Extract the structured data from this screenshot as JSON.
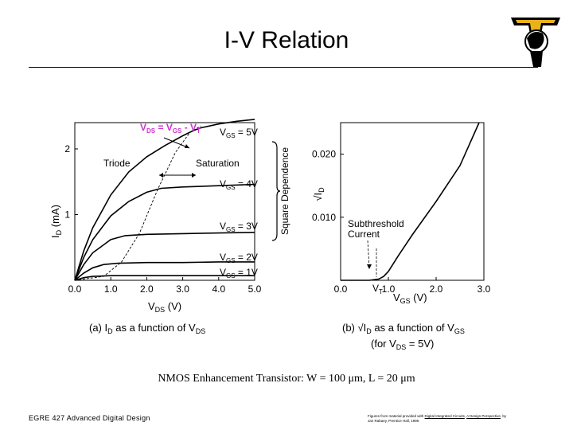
{
  "title": "I-V Relation",
  "footer": {
    "course": "EGRE 427 Advanced Digital Design",
    "credit_prefix": "Figures from material provided with",
    "credit_book": "Digital Integrated Circuits",
    "credit_mid": "A Design Perspective",
    "credit_suffix": "by Jan Rabaey, Prentice Hall, 1996"
  },
  "caption": "NMOS Enhancement Transistor: W = 100 μm, L = 20 μm",
  "colors": {
    "accent_label": "#cc33cc",
    "curve": "#000000",
    "logo_gold": "#e8b21c"
  },
  "chart_data": [
    {
      "type": "line",
      "caption": "(a) I_D as a function of V_DS",
      "xlabel": "V_DS (V)",
      "ylabel": "I_D (mA)",
      "xlim": [
        0,
        5
      ],
      "ylim": [
        0,
        2.4
      ],
      "x_ticks": [
        "0.0",
        "1.0",
        "2.0",
        "3.0",
        "4.0",
        "5.0"
      ],
      "y_ticks": [
        "1",
        "2"
      ],
      "annotations": {
        "triode": "Triode",
        "saturation": "Saturation",
        "boundary": "V_DS = V_GS - V_T",
        "square": "Square Dependence"
      },
      "series": [
        {
          "name": "V_GS = 5V",
          "x": [
            0,
            0.25,
            0.5,
            1.0,
            1.5,
            2.0,
            2.5,
            3.0,
            3.3,
            3.5,
            4.0,
            4.5,
            5.0
          ],
          "y": [
            0,
            0.45,
            0.8,
            1.3,
            1.65,
            1.88,
            2.05,
            2.2,
            2.28,
            2.32,
            2.38,
            2.42,
            2.45
          ]
        },
        {
          "name": "V_GS = 4V",
          "x": [
            0,
            0.25,
            0.5,
            1.0,
            1.5,
            2.0,
            2.4,
            3.0,
            4.0,
            5.0
          ],
          "y": [
            0,
            0.35,
            0.62,
            0.98,
            1.2,
            1.34,
            1.4,
            1.42,
            1.44,
            1.46
          ]
        },
        {
          "name": "V_GS = 3V",
          "x": [
            0,
            0.25,
            0.5,
            1.0,
            1.4,
            2.0,
            3.0,
            4.0,
            5.0
          ],
          "y": [
            0,
            0.24,
            0.42,
            0.62,
            0.68,
            0.7,
            0.71,
            0.72,
            0.73
          ]
        },
        {
          "name": "V_GS = 2V",
          "x": [
            0,
            0.25,
            0.5,
            0.8,
            1.2,
            2.0,
            3.0,
            4.0,
            5.0
          ],
          "y": [
            0,
            0.11,
            0.19,
            0.24,
            0.26,
            0.27,
            0.27,
            0.28,
            0.28
          ]
        },
        {
          "name": "V_GS = 1V",
          "x": [
            0,
            0.25,
            0.5,
            1.0,
            2.0,
            3.0,
            4.0,
            5.0
          ],
          "y": [
            0,
            0.04,
            0.06,
            0.07,
            0.07,
            0.07,
            0.07,
            0.07
          ]
        }
      ],
      "boundary_curve": {
        "x": [
          0.0,
          0.8,
          1.3,
          1.8,
          2.3,
          2.8,
          3.2,
          3.5
        ],
        "y": [
          0.0,
          0.06,
          0.28,
          0.72,
          1.38,
          1.95,
          2.25,
          2.35
        ]
      }
    },
    {
      "type": "line",
      "caption": "(b) √I_D as a function of V_GS",
      "caption_line2": "(for V_DS = 5V)",
      "xlabel": "V_GS (V)",
      "ylabel": "√I_D",
      "xlim": [
        0,
        3.0
      ],
      "ylim": [
        0,
        0.025
      ],
      "x_ticks": [
        "0.0",
        "1.0",
        "2.0",
        "3.0"
      ],
      "y_ticks": [
        "0.010",
        "0.020"
      ],
      "annotations": {
        "subthreshold": "Subthreshold Current",
        "vt": "V_T"
      },
      "series": [
        {
          "name": "sqrt(I_D)",
          "x": [
            0.0,
            0.6,
            0.8,
            0.9,
            1.0,
            1.1,
            1.2,
            1.5,
            2.0,
            2.5,
            2.9
          ],
          "y": [
            0.0,
            0.0,
            0.0002,
            0.0006,
            0.0014,
            0.0026,
            0.0038,
            0.0072,
            0.0125,
            0.0182,
            0.025
          ]
        }
      ]
    }
  ]
}
